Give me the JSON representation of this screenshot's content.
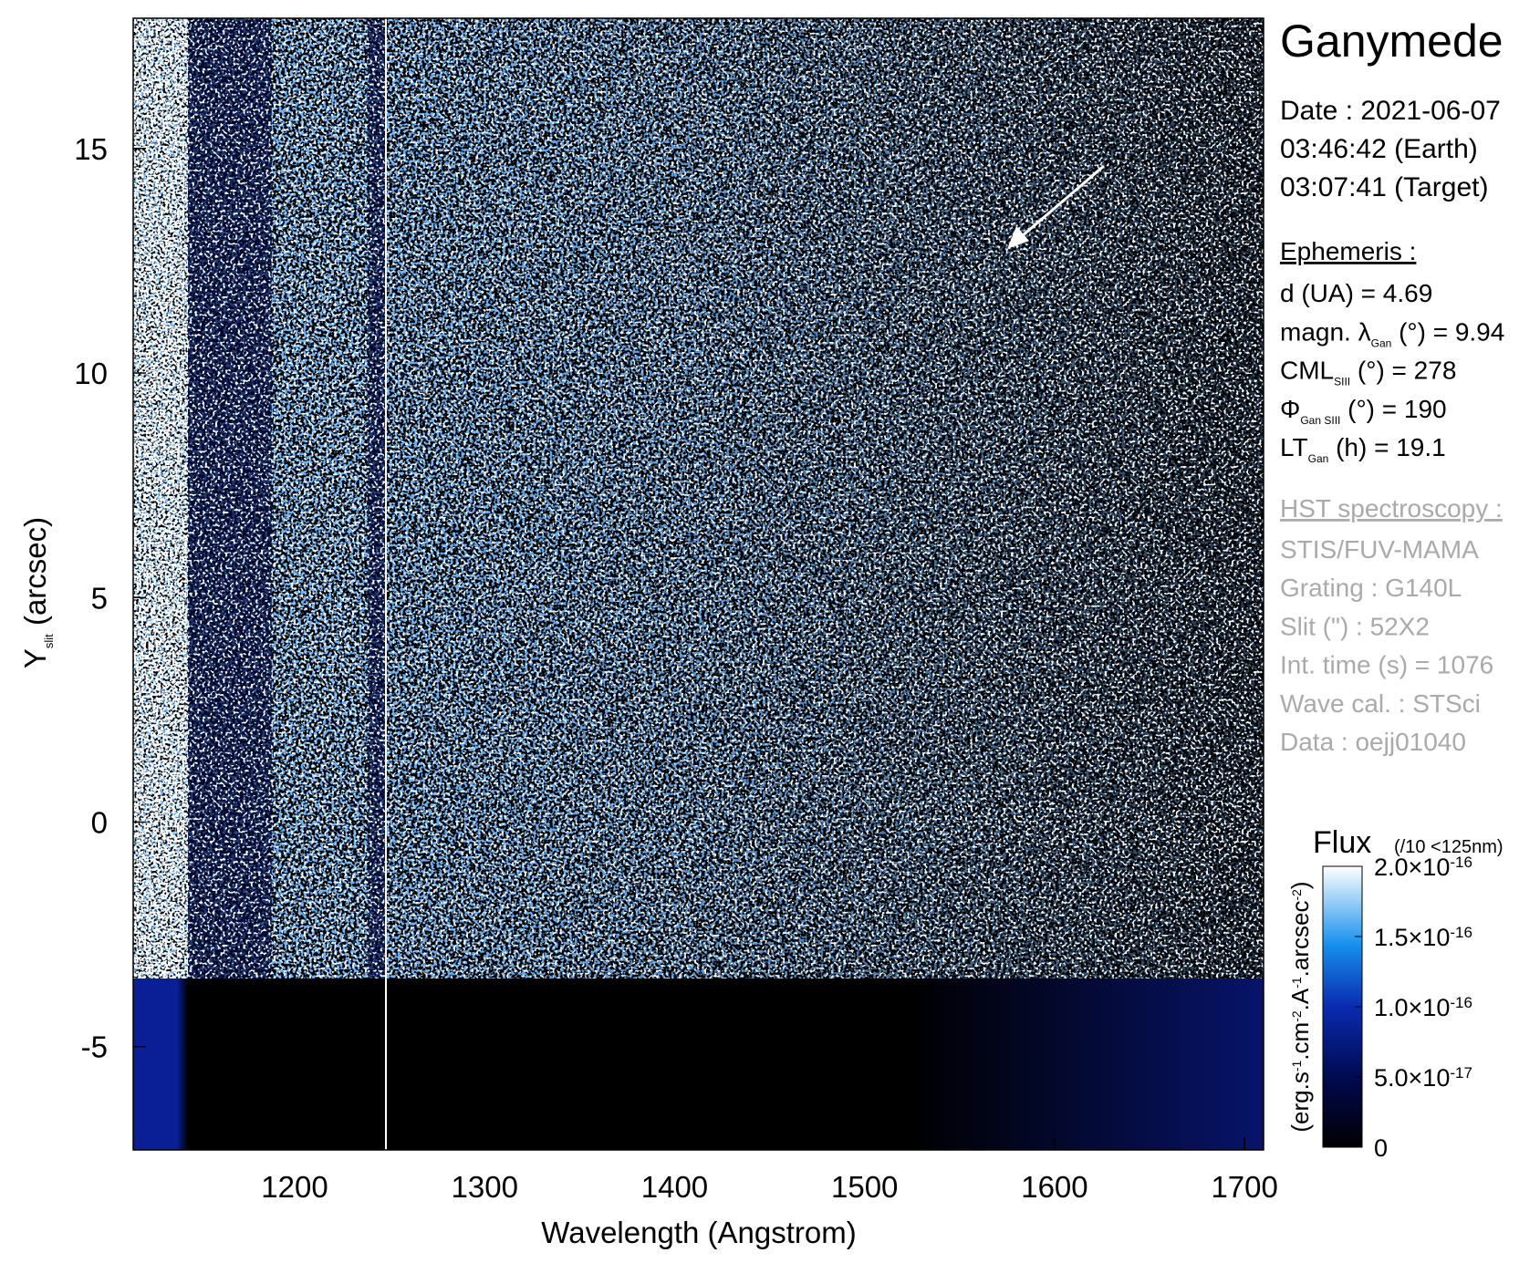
{
  "chart_data": {
    "type": "heatmap",
    "title": "Ganymede",
    "x_label": "Wavelength (Angstrom)",
    "y_label": [
      "Y",
      "slit",
      " (arcsec)"
    ],
    "xlim": [
      1115,
      1710
    ],
    "xticks": [
      1200,
      1300,
      1400,
      1500,
      1600,
      1700
    ],
    "ylim": [
      -7.3,
      17.9
    ],
    "yticks": [
      -5,
      0,
      5,
      10,
      15
    ],
    "colorbar": {
      "title": "Flux",
      "note": "(/10 <125nm)",
      "units": [
        "(erg.s",
        "-1",
        ".cm",
        "-2",
        ".A",
        "-1",
        ".arcsec",
        "-2",
        ")"
      ],
      "clim": [
        0,
        2e-16
      ],
      "ticks": [
        0,
        {
          "value": 5e-17,
          "label": "5.0×10",
          "exponent": "-17"
        },
        {
          "value": 1e-16,
          "label": "1.0×10",
          "exponent": "-16"
        },
        {
          "value": 1.5e-16,
          "label": "1.5×10",
          "exponent": "-16"
        },
        {
          "value": 2e-16,
          "label": "2.0×10",
          "exponent": "-16"
        }
      ]
    }
  },
  "info": {
    "date": [
      "Date : 2021-06-07",
      "03:46:42 (Earth)",
      "03:07:41 (Target)"
    ],
    "ephemeris_title": "Ephemeris :",
    "ephemeris": [
      [
        "d (UA)     = 4.69"
      ],
      [
        "magn. λ",
        "Gan",
        " (°)  = 9.94"
      ],
      [
        "CML",
        "SIII",
        " (°) = 278"
      ],
      [
        "Φ",
        "Gan SIII",
        " (°) = 190"
      ],
      [
        "LT",
        "Gan",
        " (h) = 19.1"
      ]
    ],
    "hst_title": "HST spectroscopy :",
    "hst": [
      "STIS/FUV-MAMA",
      "Grating : G140L",
      "Slit (\") : 52X2",
      "Int. time (s) = 1076",
      "Wave cal. : STSci",
      "Data : oejj01040"
    ]
  }
}
